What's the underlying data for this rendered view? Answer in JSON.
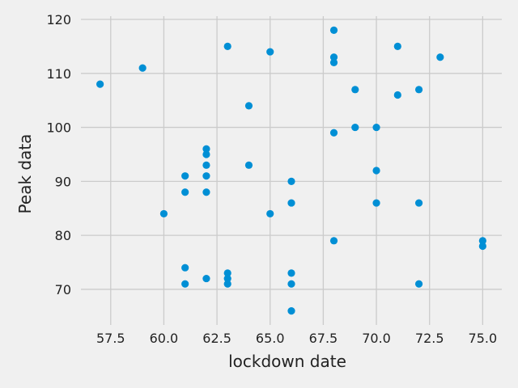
{
  "chart_data": {
    "type": "scatter",
    "title": "",
    "xlabel": "lockdown date",
    "ylabel": "Peak data",
    "xlim": [
      56.1,
      75.9
    ],
    "ylim": [
      63.4,
      120.6
    ],
    "x_ticks": [
      57.5,
      60.0,
      62.5,
      65.0,
      67.5,
      70.0,
      72.5,
      75.0
    ],
    "x_tick_labels": [
      "57.5",
      "60.0",
      "62.5",
      "65.0",
      "67.5",
      "70.0",
      "72.5",
      "75.0"
    ],
    "y_ticks": [
      70,
      80,
      90,
      100,
      110,
      120
    ],
    "y_tick_labels": [
      "70",
      "80",
      "90",
      "100",
      "110",
      "120"
    ],
    "grid": true,
    "colors": {
      "background": "#f0f0f0",
      "grid": "#cbcbcb",
      "marker": "#008fd5",
      "text": "#222222"
    },
    "points": [
      {
        "x": 57,
        "y": 108
      },
      {
        "x": 59,
        "y": 111
      },
      {
        "x": 60,
        "y": 84
      },
      {
        "x": 61,
        "y": 91
      },
      {
        "x": 61,
        "y": 88
      },
      {
        "x": 61,
        "y": 74
      },
      {
        "x": 61,
        "y": 71
      },
      {
        "x": 62,
        "y": 96
      },
      {
        "x": 62,
        "y": 95
      },
      {
        "x": 62,
        "y": 93
      },
      {
        "x": 62,
        "y": 91
      },
      {
        "x": 62,
        "y": 88
      },
      {
        "x": 62,
        "y": 72
      },
      {
        "x": 63,
        "y": 115
      },
      {
        "x": 63,
        "y": 73
      },
      {
        "x": 63,
        "y": 72
      },
      {
        "x": 63,
        "y": 71
      },
      {
        "x": 64,
        "y": 104
      },
      {
        "x": 64,
        "y": 93
      },
      {
        "x": 65,
        "y": 114
      },
      {
        "x": 65,
        "y": 84
      },
      {
        "x": 66,
        "y": 90
      },
      {
        "x": 66,
        "y": 86
      },
      {
        "x": 66,
        "y": 73
      },
      {
        "x": 66,
        "y": 71
      },
      {
        "x": 66,
        "y": 66
      },
      {
        "x": 68,
        "y": 118
      },
      {
        "x": 68,
        "y": 113
      },
      {
        "x": 68,
        "y": 112
      },
      {
        "x": 68,
        "y": 99
      },
      {
        "x": 68,
        "y": 79
      },
      {
        "x": 69,
        "y": 107
      },
      {
        "x": 69,
        "y": 100
      },
      {
        "x": 70,
        "y": 100
      },
      {
        "x": 70,
        "y": 92
      },
      {
        "x": 70,
        "y": 86
      },
      {
        "x": 71,
        "y": 115
      },
      {
        "x": 71,
        "y": 106
      },
      {
        "x": 72,
        "y": 107
      },
      {
        "x": 72,
        "y": 86
      },
      {
        "x": 72,
        "y": 71
      },
      {
        "x": 73,
        "y": 113
      },
      {
        "x": 75,
        "y": 79
      },
      {
        "x": 75,
        "y": 78
      }
    ]
  }
}
